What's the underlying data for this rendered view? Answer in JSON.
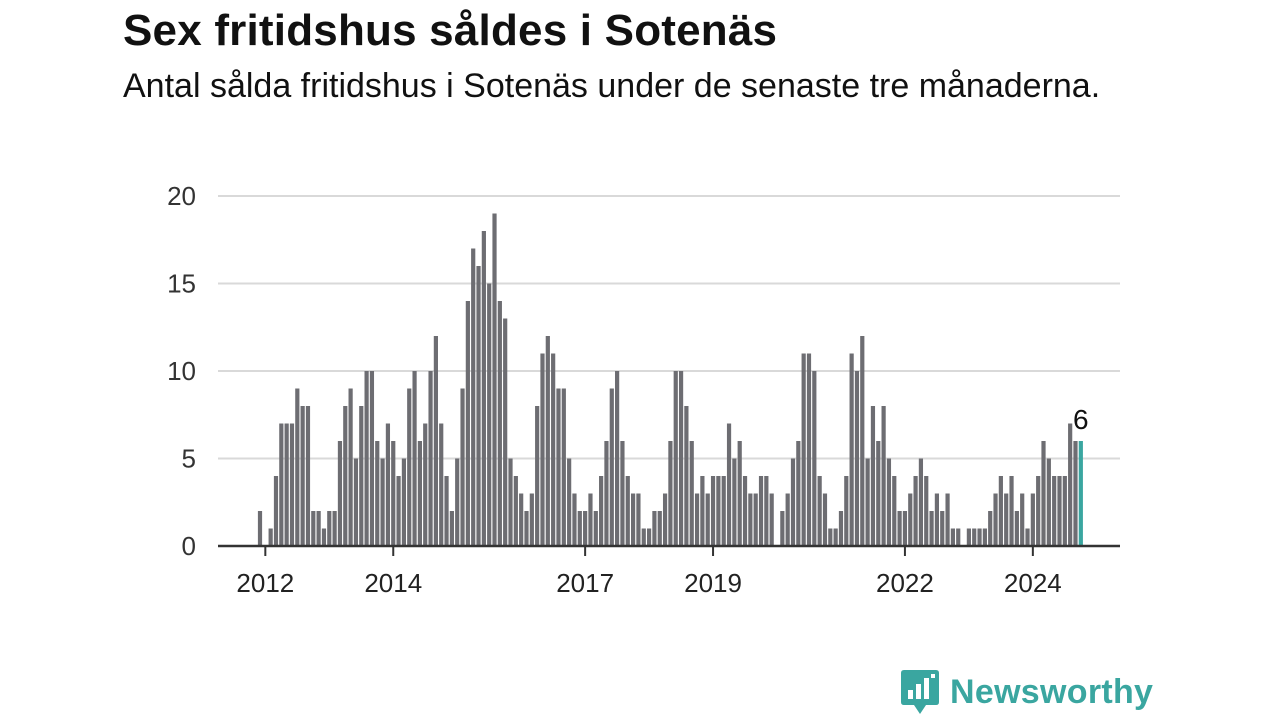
{
  "header": {
    "title": "Sex fritidshus såldes i Sotenäs",
    "subtitle": "Antal sålda fritidshus i Sotenäs under de senaste tre månaderna."
  },
  "brand": {
    "name": "Newsworthy",
    "icon": "newsworthy-logo-icon",
    "color": "#3aa6a0"
  },
  "chart_data": {
    "type": "bar",
    "title": "Sex fritidshus såldes i Sotenäs",
    "subtitle": "Antal sålda fritidshus i Sotenäs under de senaste tre månaderna.",
    "xlabel": "",
    "ylabel": "",
    "ylim": [
      0,
      20
    ],
    "yticks": [
      0,
      5,
      10,
      15,
      20
    ],
    "xticks": [
      "2012",
      "2014",
      "2017",
      "2019",
      "2022",
      "2024"
    ],
    "x_start": "2011-12",
    "frequency": "monthly",
    "values": [
      2,
      0,
      1,
      4,
      7,
      7,
      7,
      9,
      8,
      8,
      2,
      2,
      1,
      2,
      2,
      6,
      8,
      9,
      5,
      8,
      10,
      10,
      6,
      5,
      7,
      6,
      4,
      5,
      9,
      10,
      6,
      7,
      10,
      12,
      7,
      4,
      2,
      5,
      9,
      14,
      17,
      16,
      18,
      15,
      19,
      14,
      13,
      5,
      4,
      3,
      2,
      3,
      8,
      11,
      12,
      11,
      9,
      9,
      5,
      3,
      2,
      2,
      3,
      2,
      4,
      6,
      9,
      10,
      6,
      4,
      3,
      3,
      1,
      1,
      2,
      2,
      3,
      6,
      10,
      10,
      8,
      6,
      3,
      4,
      3,
      4,
      4,
      4,
      7,
      5,
      6,
      4,
      3,
      3,
      4,
      4,
      3,
      0,
      2,
      3,
      5,
      6,
      11,
      11,
      10,
      4,
      3,
      1,
      1,
      2,
      4,
      11,
      10,
      12,
      5,
      8,
      6,
      8,
      5,
      4,
      2,
      2,
      3,
      4,
      5,
      4,
      2,
      3,
      2,
      3,
      1,
      1,
      0,
      1,
      1,
      1,
      1,
      2,
      3,
      4,
      3,
      4,
      2,
      3,
      1,
      3,
      4,
      6,
      5,
      4,
      4,
      4,
      7,
      6,
      6
    ],
    "bar_color": "#6d6d72",
    "highlight_color": "#3aa6a0",
    "highlight_index": 154,
    "annotation": {
      "text": "6",
      "index": 154
    },
    "grid": true
  }
}
